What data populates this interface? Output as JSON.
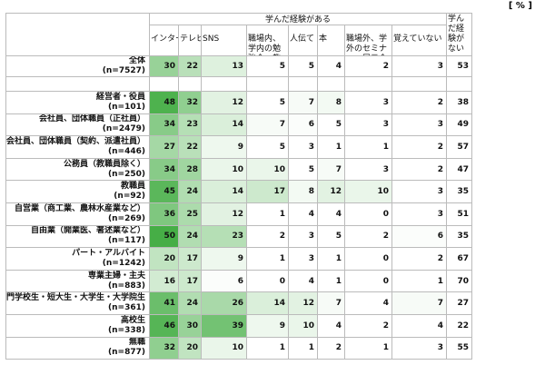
{
  "unit_label": "[ % ]",
  "group_header": "学んだ経験がある",
  "columns": [
    "インターネット",
    "テレビ",
    "SNS",
    "職場内、学内の勉強会、教材",
    "人伝て",
    "本",
    "職場外、学外のセミナー、展示会",
    "覚えていない",
    "学んだ経験がない"
  ],
  "rows": [
    {
      "label": "全体",
      "n": "(n=7527)",
      "values": [
        30,
        22,
        13,
        5,
        5,
        4,
        2,
        3,
        53
      ]
    },
    {
      "label": "経営者・役員",
      "n": "(n=101)",
      "values": [
        48,
        32,
        12,
        5,
        7,
        8,
        3,
        2,
        38
      ]
    },
    {
      "label": "会社員、団体職員（正社員）",
      "n": "(n=2479)",
      "values": [
        34,
        23,
        14,
        7,
        6,
        5,
        3,
        3,
        49
      ]
    },
    {
      "label": "会社員、団体職員（契約、派遣社員）",
      "n": "(n=446)",
      "values": [
        27,
        22,
        9,
        5,
        3,
        1,
        1,
        2,
        57
      ]
    },
    {
      "label": "公務員（教職員除く）",
      "n": "(n=250)",
      "values": [
        34,
        28,
        10,
        10,
        5,
        7,
        3,
        2,
        47
      ]
    },
    {
      "label": "教職員",
      "n": "(n=92)",
      "values": [
        45,
        24,
        14,
        17,
        8,
        12,
        10,
        3,
        35
      ]
    },
    {
      "label": "自営業（商工業、農林水産業など）",
      "n": "(n=269)",
      "values": [
        36,
        25,
        12,
        1,
        4,
        4,
        0,
        3,
        51
      ]
    },
    {
      "label": "自由業（開業医、著述業など）",
      "n": "(n=117)",
      "values": [
        50,
        24,
        23,
        2,
        3,
        5,
        2,
        6,
        35
      ]
    },
    {
      "label": "パート・アルバイト",
      "n": "(n=1242)",
      "values": [
        20,
        17,
        9,
        1,
        3,
        1,
        0,
        2,
        67
      ]
    },
    {
      "label": "専業主婦・主夫",
      "n": "(n=883)",
      "values": [
        16,
        17,
        6,
        0,
        4,
        1,
        0,
        1,
        70
      ]
    },
    {
      "label": "専門学校生・短大生・大学生・大学院生",
      "n": "(n=361)",
      "values": [
        41,
        24,
        26,
        14,
        12,
        7,
        4,
        7,
        27
      ]
    },
    {
      "label": "高校生",
      "n": "(n=338)",
      "values": [
        46,
        30,
        39,
        9,
        10,
        4,
        2,
        4,
        22
      ]
    },
    {
      "label": "無職",
      "n": "(n=877)",
      "values": [
        32,
        20,
        10,
        1,
        1,
        2,
        1,
        3,
        55
      ]
    }
  ]
}
